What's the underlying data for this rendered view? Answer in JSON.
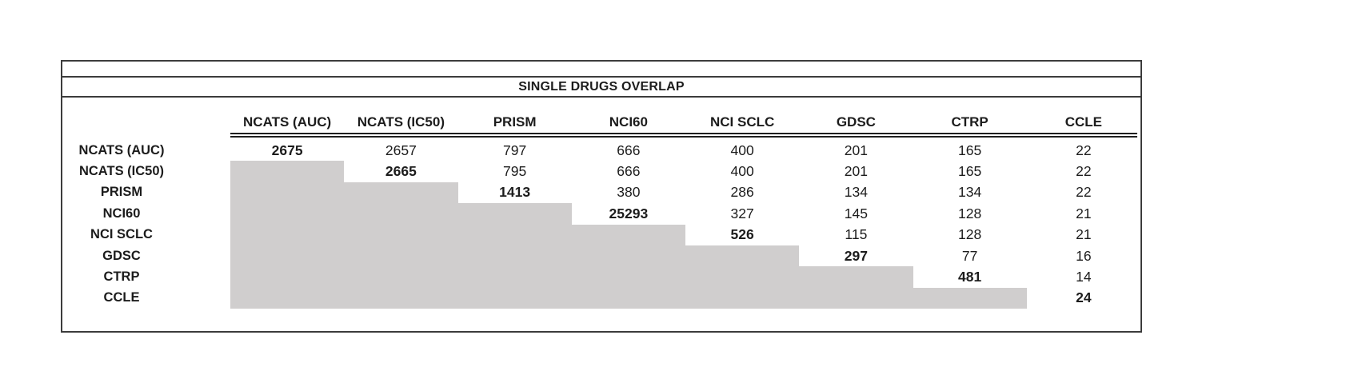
{
  "window": {
    "background": "#ffffff"
  },
  "colors": {
    "shade": "#d0cece",
    "border": "#3c3c3c",
    "rule": "#1f1f1f",
    "text": "#1c1c1c"
  },
  "chart_data": {
    "type": "table",
    "title": "SINGLE DRUGS OVERLAP",
    "columns": [
      "NCATS (AUC)",
      "NCATS (IC50)",
      "PRISM",
      "NCI60",
      "NCI SCLC",
      "GDSC",
      "CTRP",
      "CCLE"
    ],
    "rows": [
      "NCATS (AUC)",
      "NCATS (IC50)",
      "PRISM",
      "NCI60",
      "NCI SCLC",
      "GDSC",
      "CTRP",
      "CCLE"
    ],
    "matrix": [
      [
        2675,
        2657,
        797,
        666,
        400,
        201,
        165,
        22
      ],
      [
        null,
        2665,
        795,
        666,
        400,
        201,
        165,
        22
      ],
      [
        null,
        null,
        1413,
        380,
        286,
        134,
        134,
        22
      ],
      [
        null,
        null,
        null,
        25293,
        327,
        145,
        128,
        21
      ],
      [
        null,
        null,
        null,
        null,
        526,
        115,
        128,
        21
      ],
      [
        null,
        null,
        null,
        null,
        null,
        297,
        77,
        16
      ],
      [
        null,
        null,
        null,
        null,
        null,
        null,
        481,
        14
      ],
      [
        null,
        null,
        null,
        null,
        null,
        null,
        null,
        24
      ]
    ],
    "layout": {
      "diagonal_style": "bold",
      "lower_triangle": "shaded",
      "legend": "off",
      "grid": "off"
    }
  }
}
